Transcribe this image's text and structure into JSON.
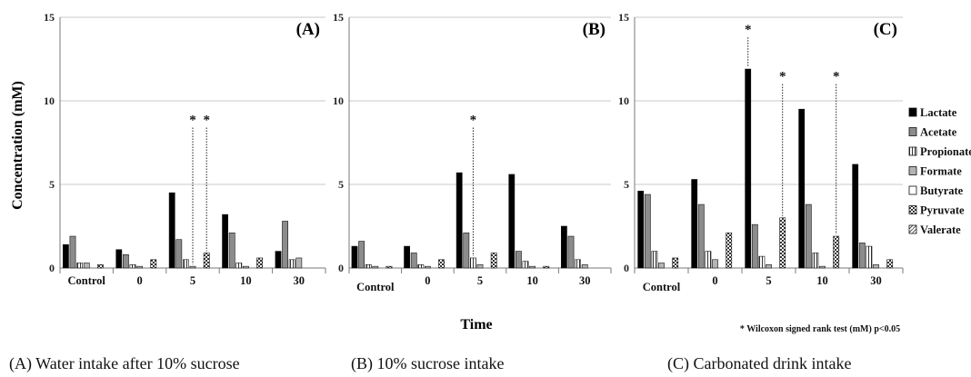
{
  "figure": {
    "ylabel": "Concentration (mM)",
    "xlabel": "Time",
    "footnote": "* Wilcoxon signed rank test (mM) p<0.05",
    "captions": [
      "(A) Water intake after 10% sucrose",
      "(B) 10% sucrose intake",
      "(C) Carbonated drink intake"
    ]
  },
  "legend": [
    {
      "name": "Lactate",
      "fill": "#000000",
      "pattern": "solid"
    },
    {
      "name": "Acetate",
      "fill": "#8c8c8c",
      "pattern": "solid"
    },
    {
      "name": "Propionate",
      "fill": "#ffffff",
      "pattern": "vlines"
    },
    {
      "name": "Formate",
      "fill": "#b4b4b4",
      "pattern": "solid"
    },
    {
      "name": "Butyrate",
      "fill": "#ffffff",
      "pattern": "solid"
    },
    {
      "name": "Pyruvate",
      "fill": "#ffffff",
      "pattern": "checker"
    },
    {
      "name": "Valerate",
      "fill": "#ffffff",
      "pattern": "diag"
    }
  ],
  "chart_data": [
    {
      "type": "bar",
      "panel_label": "(A)",
      "categories": [
        "Control",
        "0",
        "5",
        "10",
        "30"
      ],
      "ylim": [
        0,
        15
      ],
      "yticks": [
        0,
        5,
        10,
        15
      ],
      "series": [
        {
          "name": "Lactate",
          "values": [
            1.4,
            1.1,
            4.5,
            3.2,
            1.0
          ]
        },
        {
          "name": "Acetate",
          "values": [
            1.9,
            0.8,
            1.7,
            2.1,
            2.8
          ]
        },
        {
          "name": "Propionate",
          "values": [
            0.3,
            0.2,
            0.5,
            0.3,
            0.5
          ]
        },
        {
          "name": "Formate",
          "values": [
            0.3,
            0.1,
            0.1,
            0.1,
            0.6
          ]
        },
        {
          "name": "Butyrate",
          "values": [
            0.0,
            0.0,
            0.0,
            0.0,
            0.0
          ]
        },
        {
          "name": "Pyruvate",
          "values": [
            0.2,
            0.5,
            0.9,
            0.6,
            0.0
          ]
        },
        {
          "name": "Valerate",
          "values": [
            0.0,
            0.0,
            0.0,
            0.0,
            0.0
          ]
        }
      ],
      "significance": [
        {
          "category": "5",
          "series": "Formate",
          "label": "*",
          "line_top": 8.4
        },
        {
          "category": "5",
          "series": "Pyruvate",
          "label": "*",
          "line_top": 8.4
        }
      ]
    },
    {
      "type": "bar",
      "panel_label": "(B)",
      "categories": [
        "Control",
        "0",
        "5",
        "10",
        "30"
      ],
      "ylim": [
        0,
        15
      ],
      "yticks": [
        0,
        5,
        10,
        15
      ],
      "series": [
        {
          "name": "Lactate",
          "values": [
            1.3,
            1.3,
            5.7,
            5.6,
            2.5
          ]
        },
        {
          "name": "Acetate",
          "values": [
            1.6,
            0.9,
            2.1,
            1.0,
            1.9
          ]
        },
        {
          "name": "Propionate",
          "values": [
            0.2,
            0.2,
            0.6,
            0.4,
            0.5
          ]
        },
        {
          "name": "Formate",
          "values": [
            0.1,
            0.1,
            0.2,
            0.1,
            0.2
          ]
        },
        {
          "name": "Butyrate",
          "values": [
            0.0,
            0.0,
            0.0,
            0.0,
            0.0
          ]
        },
        {
          "name": "Pyruvate",
          "values": [
            0.1,
            0.5,
            0.9,
            0.1,
            0.0
          ]
        },
        {
          "name": "Valerate",
          "values": [
            0.0,
            0.0,
            0.0,
            0.0,
            0.0
          ]
        }
      ],
      "significance": [
        {
          "category": "5",
          "series": "Propionate",
          "label": "*",
          "line_top": 8.4
        }
      ]
    },
    {
      "type": "bar",
      "panel_label": "(C)",
      "categories": [
        "Control",
        "0",
        "5",
        "10",
        "30"
      ],
      "ylim": [
        0,
        15
      ],
      "yticks": [
        0,
        5,
        10,
        15
      ],
      "series": [
        {
          "name": "Lactate",
          "values": [
            4.6,
            5.3,
            11.9,
            9.5,
            6.2
          ]
        },
        {
          "name": "Acetate",
          "values": [
            4.4,
            3.8,
            2.6,
            3.8,
            1.5
          ]
        },
        {
          "name": "Propionate",
          "values": [
            1.0,
            1.0,
            0.7,
            0.9,
            1.3
          ]
        },
        {
          "name": "Formate",
          "values": [
            0.3,
            0.5,
            0.2,
            0.1,
            0.2
          ]
        },
        {
          "name": "Butyrate",
          "values": [
            0.0,
            0.0,
            0.0,
            0.0,
            0.0
          ]
        },
        {
          "name": "Pyruvate",
          "values": [
            0.6,
            2.1,
            3.0,
            1.9,
            0.5
          ]
        },
        {
          "name": "Valerate",
          "values": [
            0.0,
            0.0,
            0.0,
            0.0,
            0.0
          ]
        }
      ],
      "significance": [
        {
          "category": "5",
          "series": "Lactate",
          "label": "*",
          "line_top": 13.8
        },
        {
          "category": "5",
          "series": "Pyruvate",
          "label": "*",
          "line_top": 11.0
        },
        {
          "category": "10",
          "series": "Pyruvate",
          "label": "*",
          "line_top": 11.0
        }
      ]
    }
  ]
}
